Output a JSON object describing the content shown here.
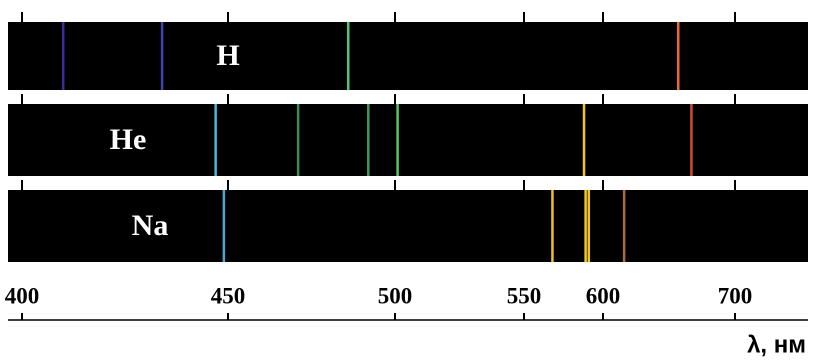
{
  "chart_data": {
    "type": "spectrum",
    "x_label": "λ, нм",
    "xlim": [
      397,
      755
    ],
    "xticks": [
      400,
      450,
      500,
      550,
      600,
      700
    ],
    "series": [
      {
        "name": "H",
        "values": [
          410,
          434,
          486,
          657
        ],
        "colors": [
          "#3a2f9a",
          "#3b44b0",
          "#48c878",
          "#f06a2a"
        ]
      },
      {
        "name": "He",
        "values": [
          447,
          471,
          492,
          501,
          588,
          667
        ],
        "colors": [
          "#4ab8dc",
          "#3c8c5a",
          "#3e9a60",
          "#56c86a",
          "#f5c41e",
          "#d04a30"
        ]
      },
      {
        "name": "Na",
        "values": [
          449,
          568,
          589,
          591,
          616
        ],
        "colors": [
          "#48a8d0",
          "#f0c020",
          "#f5c81e",
          "#f5c81e",
          "#b06a38"
        ]
      }
    ]
  }
}
